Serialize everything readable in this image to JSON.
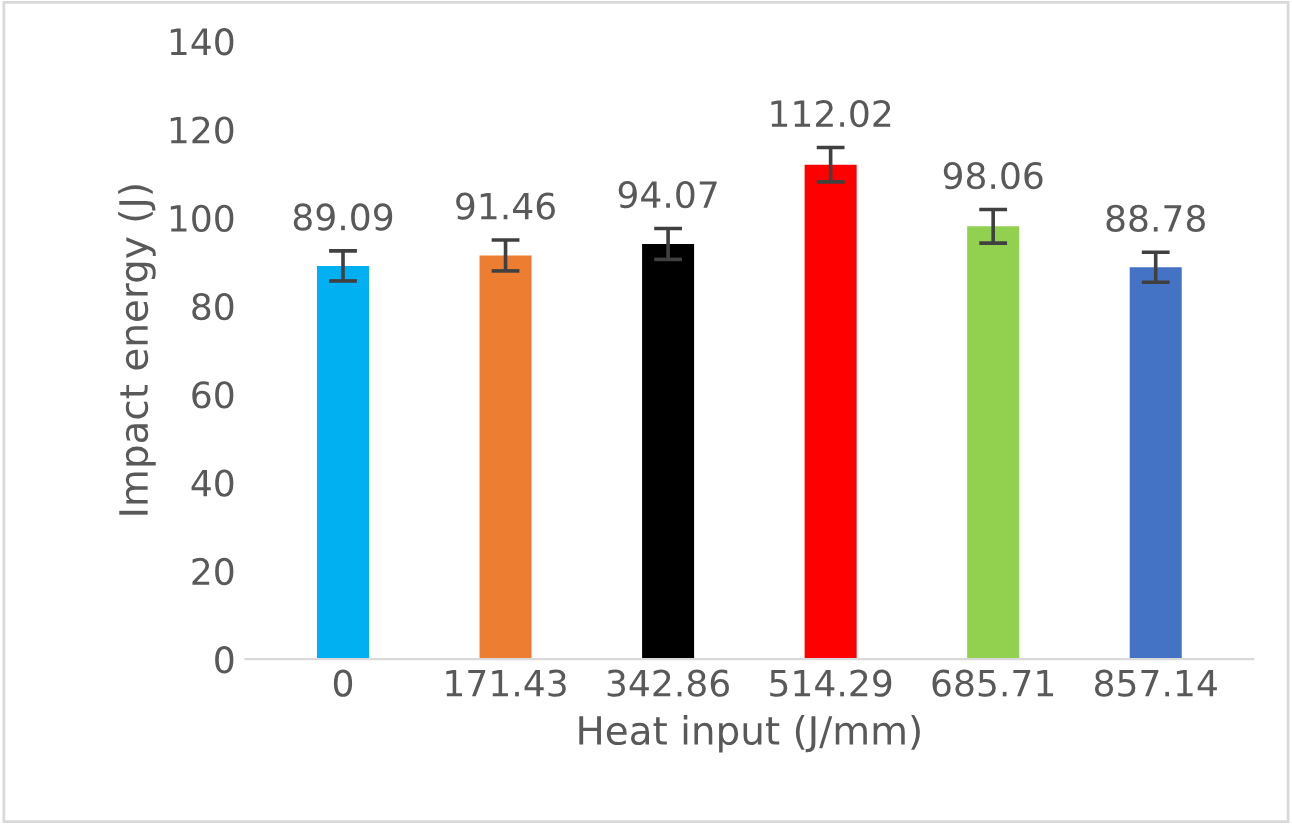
{
  "chart_data": {
    "type": "bar",
    "xlabel": "Heat input (J/mm)",
    "ylabel": "Impact energy (J)",
    "categories": [
      "0",
      "171.43",
      "342.86",
      "514.29",
      "685.71",
      "857.14"
    ],
    "values": [
      89.09,
      91.46,
      94.07,
      112.02,
      98.06,
      88.78
    ],
    "colors": [
      "#00b0f0",
      "#ed7d31",
      "#000000",
      "#ff0000",
      "#92d050",
      "#4472c4"
    ],
    "errors": [
      3.4,
      3.5,
      3.5,
      3.9,
      3.8,
      3.4
    ],
    "data_labels": true,
    "ylim": [
      0,
      140
    ],
    "yticks": [
      0,
      20,
      40,
      60,
      80,
      100,
      120,
      140
    ],
    "grid": false,
    "legend": false
  }
}
